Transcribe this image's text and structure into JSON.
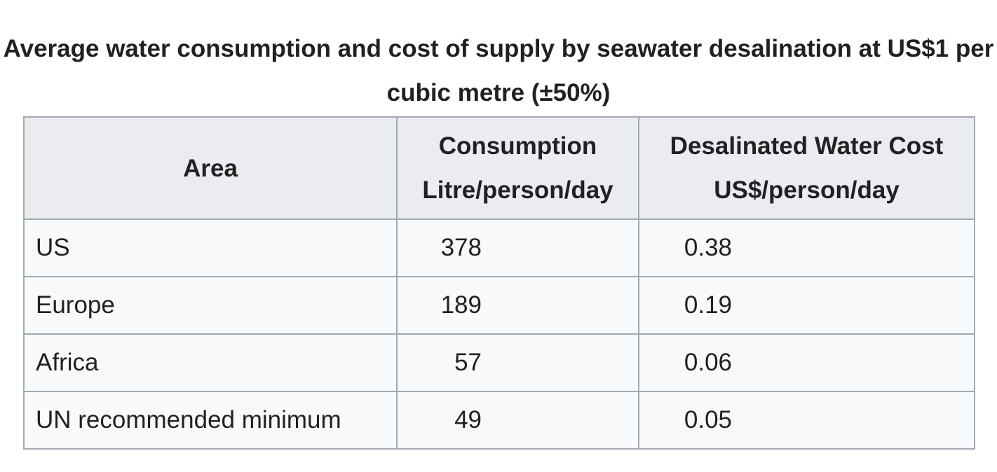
{
  "caption": "Average water consumption and cost of supply by seawater desalination at US$1 per cubic metre (±50%)",
  "headers": {
    "area": "Area",
    "consumption_line1": "Consumption",
    "consumption_line2": "Litre/person/day",
    "cost_line1": "Desalinated Water Cost",
    "cost_line2": "US$/person/day"
  },
  "rows": [
    {
      "area": "US",
      "consumption": "378",
      "cost": "0.38"
    },
    {
      "area": "Europe",
      "consumption": "189",
      "cost": "0.19"
    },
    {
      "area": "Africa",
      "consumption": "57",
      "cost": "0.06"
    },
    {
      "area": "UN recommended minimum",
      "consumption": "49",
      "cost": "0.05"
    }
  ],
  "colors": {
    "header_background": "#eaecf0",
    "cell_background": "#f8f9fa",
    "border": "#a2a9b1",
    "text": "#202122"
  }
}
